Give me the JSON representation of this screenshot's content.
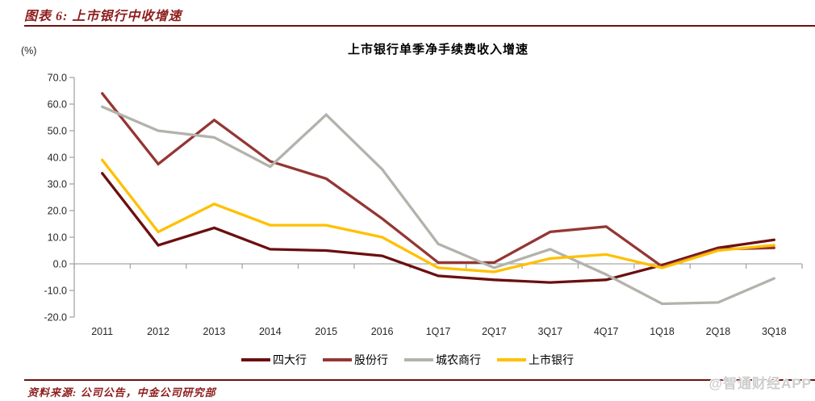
{
  "figure": {
    "label": "图表 6:",
    "title": "上市银行中收增速"
  },
  "chart_data": {
    "type": "line",
    "title": "上市银行单季净手续费收入增速",
    "unit_label": "(%)",
    "categories": [
      "2011",
      "2012",
      "2013",
      "2014",
      "2015",
      "2016",
      "1Q17",
      "2Q17",
      "3Q17",
      "4Q17",
      "1Q18",
      "2Q18",
      "3Q18"
    ],
    "series": [
      {
        "name": "四大行",
        "color": "#6b0f0f",
        "values": [
          34,
          7,
          13.5,
          5.5,
          5,
          3,
          -4.5,
          -6,
          -7,
          -6,
          -0.5,
          6,
          9
        ]
      },
      {
        "name": "股份行",
        "color": "#943634",
        "values": [
          64,
          37.5,
          54,
          38.5,
          32,
          17,
          0.5,
          0.5,
          12,
          14,
          -1,
          5.5,
          6
        ]
      },
      {
        "name": "城农商行",
        "color": "#b3b2ab",
        "values": [
          59,
          50,
          47.5,
          36.5,
          56,
          35.5,
          7.5,
          -1.5,
          5.5,
          -4,
          -15,
          -14.5,
          -5.5
        ]
      },
      {
        "name": "上市银行",
        "color": "#ffc000",
        "values": [
          39,
          12,
          22.5,
          14.5,
          14.5,
          10,
          -1.5,
          -3,
          2,
          3.5,
          -1.5,
          5,
          7
        ]
      }
    ],
    "ylim": [
      -20,
      70
    ],
    "ytick_step": 10,
    "ytick_labels": [
      "70.0",
      "60.0",
      "50.0",
      "40.0",
      "30.0",
      "20.0",
      "10.0",
      "0.0",
      "-10.0",
      "-20.0"
    ],
    "grid": false,
    "legend_position": "bottom"
  },
  "source": {
    "text": "资料来源: 公司公告，中金公司研究部"
  },
  "watermark": {
    "text": "@智通财经APP"
  },
  "colors": {
    "accent_red": "#8e1d1d",
    "rule": "#6b1111",
    "axis": "#a6a6a6",
    "label": "#262626"
  }
}
